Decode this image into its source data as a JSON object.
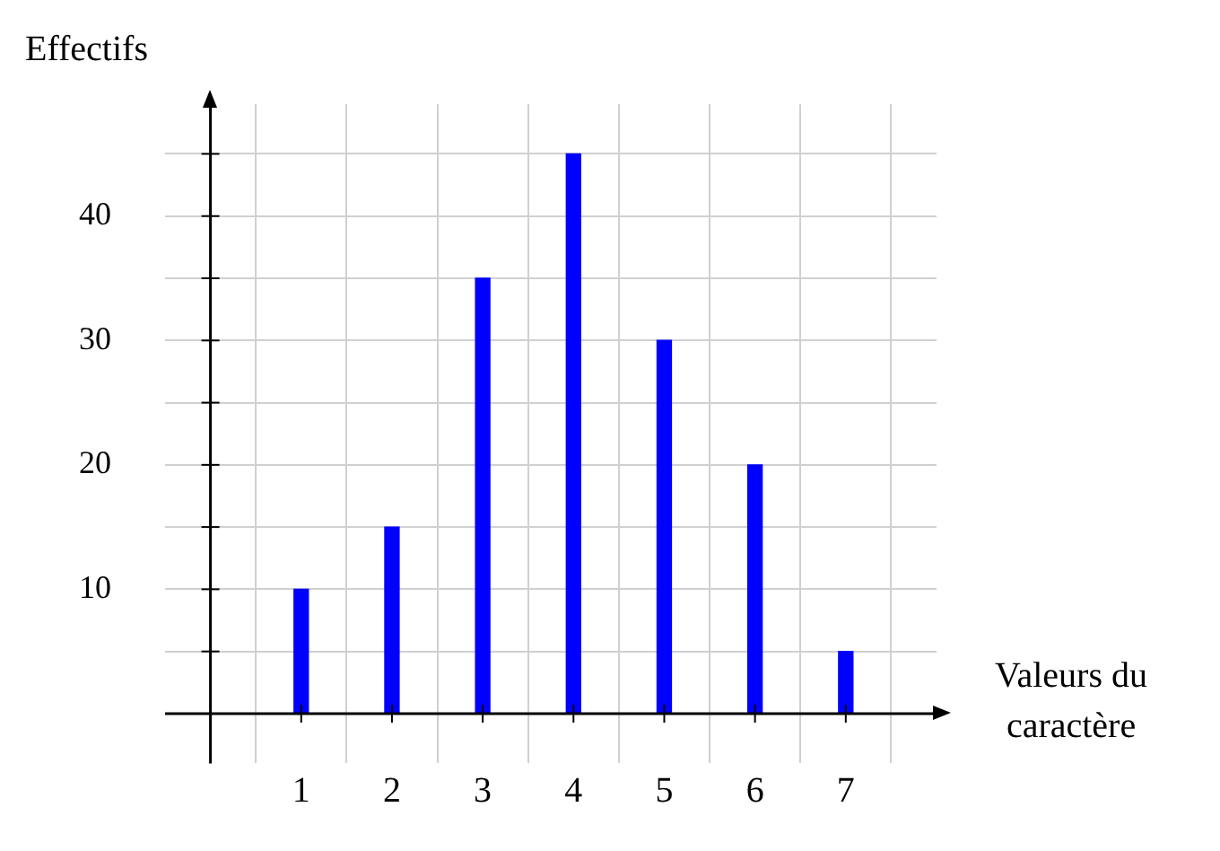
{
  "chart_data": {
    "type": "bar",
    "xlabel": "Valeurs du caractère",
    "ylabel": "Effectifs",
    "x": [
      1,
      2,
      3,
      4,
      5,
      6,
      7
    ],
    "values": [
      10,
      15,
      35,
      45,
      30,
      20,
      5
    ],
    "color": "#0000ff",
    "xlim": [
      -0.5,
      8
    ],
    "xticks": [
      1,
      2,
      3,
      4,
      5,
      6,
      7
    ],
    "ylim": [
      -4,
      49
    ],
    "yticks": [
      {
        "value": 5,
        "label": null
      },
      10,
      {
        "value": 15,
        "label": null
      },
      20,
      {
        "value": 25,
        "label": null
      },
      30,
      {
        "value": 35,
        "label": null
      },
      40,
      {
        "value": 45,
        "label": null
      }
    ],
    "grid": true,
    "legend": false
  }
}
